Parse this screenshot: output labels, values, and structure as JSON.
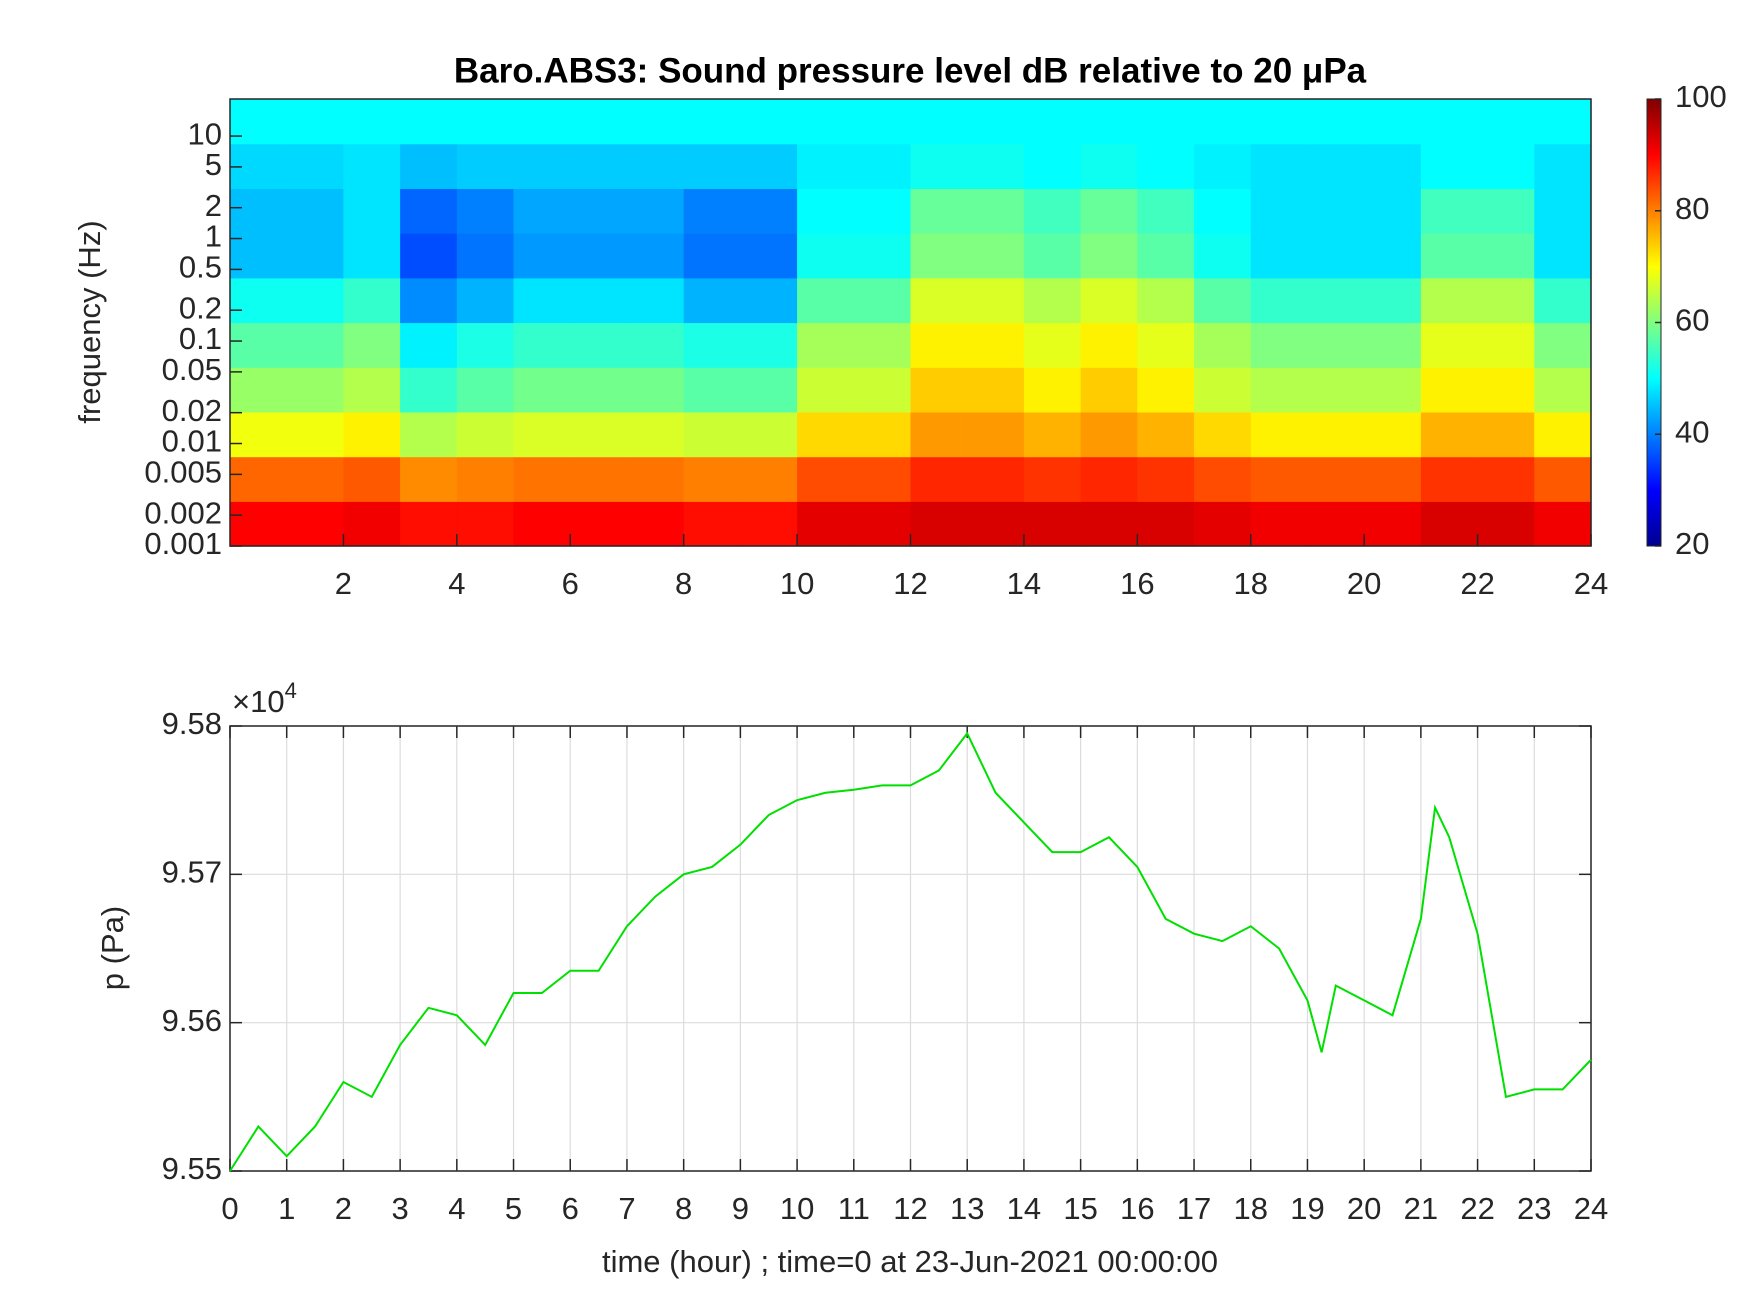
{
  "chart_data": [
    {
      "type": "heatmap",
      "title": "Baro.ABS3: Sound pressure level dB relative to 20 μPa",
      "ylabel": "frequency (Hz)",
      "xlim": [
        0,
        24
      ],
      "xticks": [
        2,
        4,
        6,
        8,
        10,
        12,
        14,
        16,
        18,
        20,
        22,
        24
      ],
      "ylim": [
        0.001,
        23
      ],
      "ylog": true,
      "yticks": [
        0.001,
        0.002,
        0.005,
        0.01,
        0.02,
        0.05,
        0.1,
        0.2,
        0.5,
        1,
        2,
        5,
        10
      ],
      "colormap": "jet",
      "clim": [
        20,
        100
      ],
      "cticks": [
        20,
        40,
        60,
        80,
        100
      ],
      "z": [
        [
          90,
          90,
          91,
          89,
          89,
          90,
          90,
          90,
          89,
          89,
          92,
          92,
          93,
          93,
          93,
          93,
          93,
          92,
          91,
          91,
          91,
          93,
          93,
          91
        ],
        [
          82,
          82,
          83,
          79,
          80,
          81,
          81,
          81,
          80,
          80,
          84,
          84,
          87,
          87,
          86,
          87,
          86,
          84,
          83,
          83,
          83,
          86,
          86,
          83
        ],
        [
          69,
          69,
          71,
          64,
          66,
          67,
          67,
          67,
          66,
          66,
          73,
          73,
          78,
          78,
          76,
          78,
          76,
          73,
          71,
          71,
          71,
          76,
          76,
          71
        ],
        [
          62,
          62,
          64,
          54,
          57,
          59,
          59,
          59,
          57,
          57,
          66,
          66,
          74,
          74,
          71,
          74,
          71,
          66,
          64,
          64,
          64,
          71,
          71,
          64
        ],
        [
          57,
          57,
          60,
          49,
          52,
          54,
          54,
          54,
          52,
          52,
          63,
          63,
          71,
          71,
          68,
          71,
          68,
          63,
          60,
          60,
          60,
          68,
          68,
          60
        ],
        [
          51,
          51,
          54,
          41,
          44,
          48,
          48,
          48,
          44,
          44,
          57,
          57,
          67,
          67,
          64,
          67,
          64,
          57,
          54,
          54,
          54,
          64,
          64,
          54
        ],
        [
          45,
          45,
          48,
          36,
          39,
          42,
          42,
          42,
          39,
          39,
          51,
          51,
          60,
          60,
          57,
          60,
          57,
          51,
          48,
          48,
          48,
          57,
          57,
          48
        ],
        [
          45,
          45,
          48,
          38,
          40,
          43,
          43,
          43,
          40,
          40,
          50,
          50,
          58,
          58,
          55,
          58,
          55,
          50,
          48,
          48,
          48,
          55,
          55,
          48
        ],
        [
          47,
          47,
          48,
          45,
          46,
          46,
          46,
          46,
          46,
          46,
          49,
          49,
          51,
          51,
          50,
          51,
          50,
          49,
          48,
          48,
          48,
          50,
          50,
          48
        ],
        [
          50,
          50,
          50,
          50,
          50,
          50,
          50,
          50,
          50,
          50,
          50,
          50,
          50,
          50,
          50,
          50,
          50,
          50,
          50,
          50,
          50,
          50,
          50,
          50
        ]
      ]
    },
    {
      "type": "line",
      "xlabel": "time (hour) ; time=0 at 23-Jun-2021 00:00:00",
      "ylabel": "p (Pa)",
      "y_multiplier": {
        "base": "×10",
        "exponent": "4"
      },
      "xlim": [
        0,
        24
      ],
      "xticks": [
        0,
        1,
        2,
        3,
        4,
        5,
        6,
        7,
        8,
        9,
        10,
        11,
        12,
        13,
        14,
        15,
        16,
        17,
        18,
        19,
        20,
        21,
        22,
        23,
        24
      ],
      "ylim": [
        9.55,
        9.58
      ],
      "yticks": [
        9.55,
        9.56,
        9.57,
        9.58
      ],
      "grid": true,
      "x": [
        0,
        0.5,
        1,
        1.5,
        2,
        2.5,
        3,
        3.5,
        4,
        4.5,
        5,
        5.5,
        6,
        6.5,
        7,
        7.5,
        8,
        8.5,
        9,
        9.5,
        10,
        10.5,
        11,
        11.5,
        12,
        12.5,
        13,
        13.5,
        14,
        14.5,
        15,
        15.5,
        16,
        16.5,
        17,
        17.5,
        18,
        18.5,
        19,
        19.25,
        19.5,
        20,
        20.5,
        21,
        21.25,
        21.5,
        22,
        22.5,
        23,
        23.5,
        24
      ],
      "series": [
        {
          "color": "#00e000",
          "values": [
            9.55,
            9.553,
            9.551,
            9.553,
            9.556,
            9.555,
            9.5585,
            9.561,
            9.5605,
            9.5585,
            9.562,
            9.562,
            9.5635,
            9.5635,
            9.5665,
            9.5685,
            9.57,
            9.5705,
            9.572,
            9.574,
            9.575,
            9.5755,
            9.5757,
            9.576,
            9.576,
            9.577,
            9.5795,
            9.5755,
            9.5735,
            9.5715,
            9.5715,
            9.5725,
            9.5705,
            9.567,
            9.566,
            9.5655,
            9.5665,
            9.565,
            9.5615,
            9.558,
            9.5625,
            9.5615,
            9.5605,
            9.567,
            9.5745,
            9.5725,
            9.566,
            9.555,
            9.5555,
            9.5555,
            9.5575
          ]
        }
      ]
    }
  ]
}
